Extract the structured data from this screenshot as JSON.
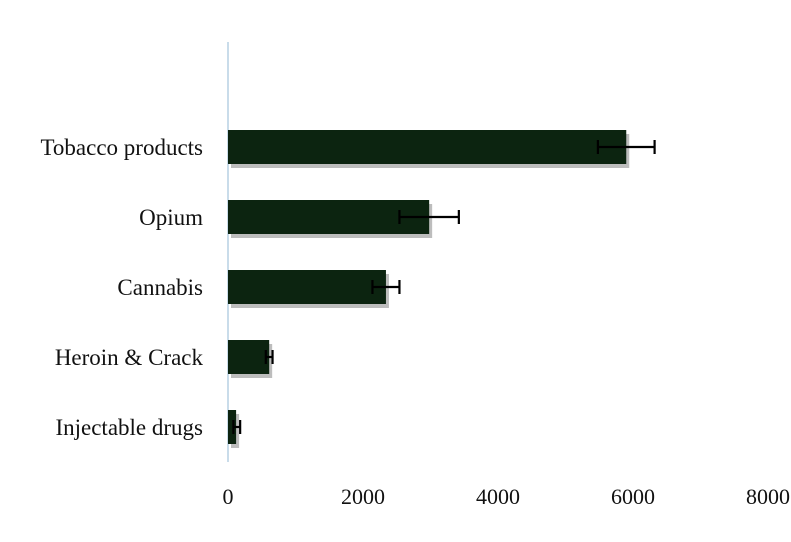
{
  "chart_data": {
    "type": "bar",
    "orientation": "horizontal",
    "categories": [
      "Tobacco products",
      "Opium",
      "Cannabis",
      "Heroin & Crack",
      "Injectable drugs"
    ],
    "values": [
      5900,
      2980,
      2340,
      610,
      120
    ],
    "error_low": [
      5480,
      2540,
      2140,
      560,
      80
    ],
    "error_high": [
      6320,
      3420,
      2540,
      660,
      180
    ],
    "xlim": [
      0,
      8000
    ],
    "xticks": [
      "0",
      "2000",
      "4000",
      "6000",
      "8000"
    ],
    "title": "",
    "xlabel": "",
    "ylabel": "",
    "grid": false,
    "legend": "none",
    "colors": {
      "bar": "#0c2410",
      "shadow": "#bdbdbd",
      "axis": "#c9dcea"
    }
  }
}
